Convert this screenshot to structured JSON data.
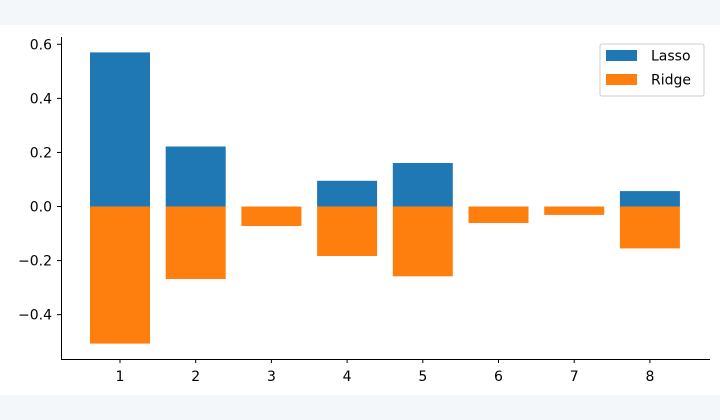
{
  "chart_data": {
    "type": "bar",
    "categories": [
      "1",
      "2",
      "3",
      "4",
      "5",
      "6",
      "7",
      "8"
    ],
    "series": [
      {
        "name": "Lasso",
        "color": "#1f77b4",
        "values": [
          0.57,
          0.222,
          0,
          0.095,
          0.161,
          0,
          0,
          0.057
        ]
      },
      {
        "name": "Ridge",
        "color": "#ff7f0e",
        "values": [
          -0.507,
          -0.268,
          -0.072,
          -0.183,
          -0.258,
          -0.061,
          -0.031,
          -0.155
        ]
      }
    ],
    "yticks": [
      "−0.4",
      "−0.2",
      "0.0",
      "0.2",
      "0.4",
      "0.6"
    ],
    "ytick_values": [
      -0.4,
      -0.2,
      0.0,
      0.2,
      0.4,
      0.6
    ],
    "ylim": [
      -0.564,
      0.627
    ],
    "title": "",
    "xlabel": "",
    "ylabel": "",
    "grid": false,
    "legend_position": "top-right"
  }
}
